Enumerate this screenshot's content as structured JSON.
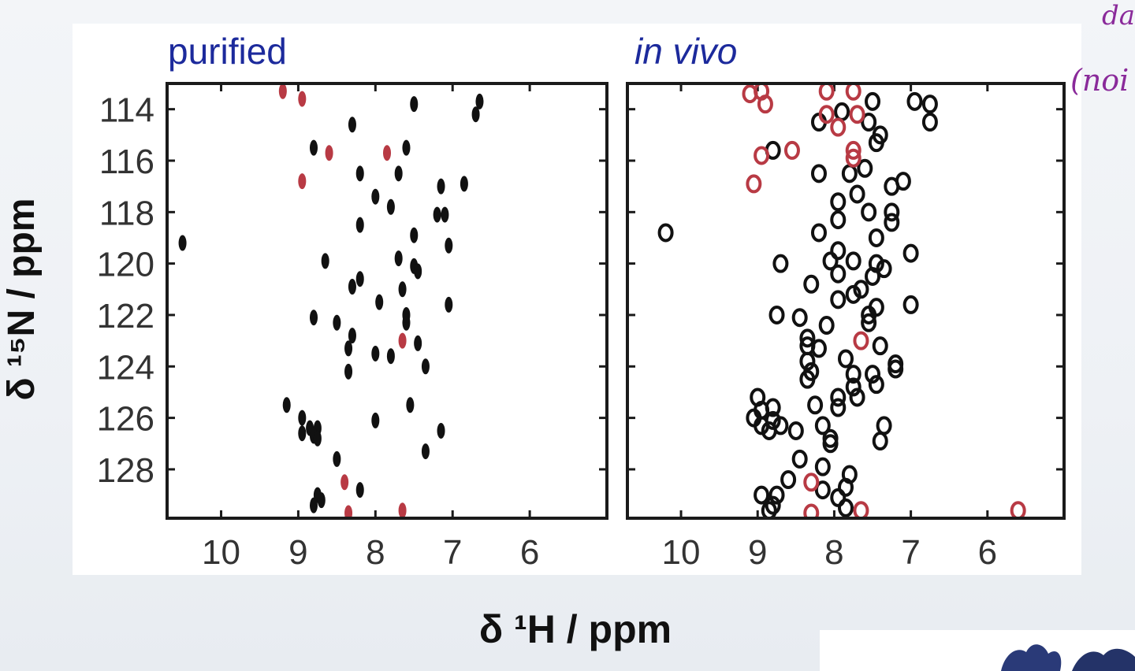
{
  "annotations": {
    "note_top": "da",
    "note_bottom": "(noi"
  },
  "chart_data": [
    {
      "type": "scatter",
      "title": "purified",
      "xlabel": "δ ¹H / ppm",
      "ylabel": "δ ¹⁵N / ppm",
      "x_ticks": [
        "10",
        "9",
        "8",
        "7",
        "6"
      ],
      "y_ticks": [
        "114",
        "116",
        "118",
        "120",
        "122",
        "124",
        "126",
        "128"
      ],
      "xlim": [
        10.7,
        5.0
      ],
      "ylim": [
        113.0,
        129.9
      ],
      "x_reversed": true,
      "y_reversed": true,
      "colors": {
        "black": "#111111",
        "red": "#b83a44"
      },
      "series": [
        {
          "color": "black",
          "points": [
            [
              10.5,
              119.2
            ],
            [
              8.3,
              114.6
            ],
            [
              7.5,
              113.8
            ],
            [
              6.65,
              113.7
            ],
            [
              6.7,
              114.2
            ],
            [
              8.8,
              115.5
            ],
            [
              7.6,
              115.5
            ],
            [
              8.2,
              116.5
            ],
            [
              7.7,
              116.5
            ],
            [
              6.85,
              116.9
            ],
            [
              7.15,
              117.0
            ],
            [
              8.0,
              117.4
            ],
            [
              7.8,
              117.8
            ],
            [
              7.2,
              118.1
            ],
            [
              7.1,
              118.1
            ],
            [
              8.2,
              118.5
            ],
            [
              7.5,
              118.9
            ],
            [
              7.05,
              119.3
            ],
            [
              8.65,
              119.9
            ],
            [
              7.7,
              119.8
            ],
            [
              7.5,
              120.1
            ],
            [
              7.45,
              120.3
            ],
            [
              8.2,
              120.6
            ],
            [
              8.3,
              120.9
            ],
            [
              7.65,
              121.0
            ],
            [
              7.95,
              121.5
            ],
            [
              7.05,
              121.6
            ],
            [
              8.8,
              122.1
            ],
            [
              8.5,
              122.3
            ],
            [
              7.6,
              122.3
            ],
            [
              7.6,
              122.0
            ],
            [
              8.3,
              122.8
            ],
            [
              8.35,
              123.3
            ],
            [
              7.45,
              123.1
            ],
            [
              8.0,
              123.5
            ],
            [
              7.8,
              123.6
            ],
            [
              8.35,
              124.2
            ],
            [
              7.35,
              124.0
            ],
            [
              9.15,
              125.5
            ],
            [
              7.55,
              125.5
            ],
            [
              8.95,
              126.0
            ],
            [
              8.0,
              126.1
            ],
            [
              8.85,
              126.4
            ],
            [
              8.75,
              126.4
            ],
            [
              8.95,
              126.6
            ],
            [
              8.8,
              126.7
            ],
            [
              8.75,
              126.8
            ],
            [
              7.15,
              126.5
            ],
            [
              7.35,
              127.3
            ],
            [
              8.5,
              127.6
            ],
            [
              8.2,
              128.8
            ],
            [
              8.75,
              129.0
            ],
            [
              8.8,
              129.4
            ],
            [
              8.7,
              129.2
            ]
          ]
        },
        {
          "color": "red",
          "points": [
            [
              9.2,
              113.3
            ],
            [
              8.95,
              113.6
            ],
            [
              8.6,
              115.7
            ],
            [
              7.85,
              115.7
            ],
            [
              8.95,
              116.8
            ],
            [
              7.65,
              123.0
            ],
            [
              8.4,
              128.5
            ],
            [
              7.65,
              129.6
            ],
            [
              8.35,
              129.7
            ]
          ]
        }
      ]
    },
    {
      "type": "scatter",
      "title": "in vivo",
      "xlabel": "δ ¹H / ppm",
      "ylabel": "δ ¹⁵N / ppm",
      "x_ticks": [
        "10",
        "9",
        "8",
        "7",
        "6"
      ],
      "y_ticks": [
        "114",
        "116",
        "118",
        "120",
        "122",
        "124",
        "126",
        "128"
      ],
      "xlim": [
        10.7,
        5.0
      ],
      "ylim": [
        113.0,
        129.9
      ],
      "x_reversed": true,
      "y_reversed": true,
      "series": [
        {
          "color": "black",
          "points": [
            [
              7.5,
              113.7
            ],
            [
              7.55,
              114.5
            ],
            [
              7.4,
              115.0
            ],
            [
              6.95,
              113.7
            ],
            [
              6.75,
              113.8
            ],
            [
              6.75,
              114.5
            ],
            [
              8.2,
              114.5
            ],
            [
              7.9,
              114.1
            ],
            [
              7.45,
              115.3
            ],
            [
              8.8,
              115.6
            ],
            [
              8.2,
              116.5
            ],
            [
              7.8,
              116.5
            ],
            [
              7.1,
              116.8
            ],
            [
              7.25,
              117.0
            ],
            [
              7.7,
              117.3
            ],
            [
              7.95,
              117.6
            ],
            [
              7.95,
              118.3
            ],
            [
              7.55,
              118.0
            ],
            [
              7.25,
              118.0
            ],
            [
              7.25,
              118.4
            ],
            [
              8.2,
              118.8
            ],
            [
              7.45,
              119.0
            ],
            [
              7.95,
              119.5
            ],
            [
              8.05,
              119.9
            ],
            [
              7.75,
              119.9
            ],
            [
              7.45,
              120.0
            ],
            [
              7.95,
              120.4
            ],
            [
              7.0,
              119.6
            ],
            [
              8.7,
              120.0
            ],
            [
              7.35,
              120.2
            ],
            [
              7.5,
              120.5
            ],
            [
              8.3,
              120.8
            ],
            [
              7.65,
              121.0
            ],
            [
              7.95,
              121.4
            ],
            [
              7.75,
              121.2
            ],
            [
              7.45,
              121.7
            ],
            [
              7.0,
              121.6
            ],
            [
              8.75,
              122.0
            ],
            [
              8.45,
              122.1
            ],
            [
              7.55,
              122.0
            ],
            [
              7.55,
              122.3
            ],
            [
              8.1,
              122.4
            ],
            [
              8.35,
              122.9
            ],
            [
              8.35,
              123.2
            ],
            [
              8.2,
              123.3
            ],
            [
              7.4,
              123.2
            ],
            [
              8.35,
              123.8
            ],
            [
              7.2,
              123.9
            ],
            [
              7.85,
              123.7
            ],
            [
              8.3,
              124.2
            ],
            [
              7.75,
              124.3
            ],
            [
              7.75,
              124.8
            ],
            [
              7.45,
              124.7
            ],
            [
              8.35,
              124.5
            ],
            [
              7.2,
              124.1
            ],
            [
              7.5,
              124.3
            ],
            [
              7.7,
              125.2
            ],
            [
              9.0,
              125.2
            ],
            [
              8.95,
              125.7
            ],
            [
              9.05,
              126.0
            ],
            [
              8.8,
              125.6
            ],
            [
              8.8,
              126.1
            ],
            [
              8.85,
              126.5
            ],
            [
              8.7,
              126.3
            ],
            [
              8.95,
              126.3
            ],
            [
              8.25,
              125.5
            ],
            [
              7.95,
              125.6
            ],
            [
              7.95,
              125.2
            ],
            [
              8.15,
              126.3
            ],
            [
              8.5,
              126.5
            ],
            [
              7.35,
              126.3
            ],
            [
              7.4,
              126.9
            ],
            [
              8.05,
              127.0
            ],
            [
              8.05,
              126.8
            ],
            [
              8.45,
              127.6
            ],
            [
              8.15,
              127.9
            ],
            [
              7.8,
              128.2
            ],
            [
              8.6,
              128.4
            ],
            [
              8.15,
              128.8
            ],
            [
              8.75,
              129.0
            ],
            [
              8.8,
              129.4
            ],
            [
              8.85,
              129.6
            ],
            [
              7.95,
              129.1
            ],
            [
              7.85,
              129.5
            ],
            [
              7.85,
              128.7
            ],
            [
              8.95,
              129.0
            ],
            [
              10.2,
              118.8
            ],
            [
              7.6,
              116.3
            ]
          ]
        },
        {
          "color": "red",
          "points": [
            [
              8.95,
              113.3
            ],
            [
              9.1,
              113.4
            ],
            [
              8.9,
              113.8
            ],
            [
              8.1,
              113.3
            ],
            [
              7.75,
              113.3
            ],
            [
              8.1,
              114.2
            ],
            [
              7.7,
              114.2
            ],
            [
              8.55,
              115.6
            ],
            [
              8.95,
              115.8
            ],
            [
              7.75,
              115.6
            ],
            [
              7.75,
              115.9
            ],
            [
              9.05,
              116.9
            ],
            [
              7.95,
              114.7
            ],
            [
              7.65,
              123.0
            ],
            [
              8.3,
              128.5
            ],
            [
              7.65,
              129.6
            ],
            [
              8.3,
              129.7
            ],
            [
              5.6,
              129.6
            ]
          ]
        }
      ]
    }
  ]
}
